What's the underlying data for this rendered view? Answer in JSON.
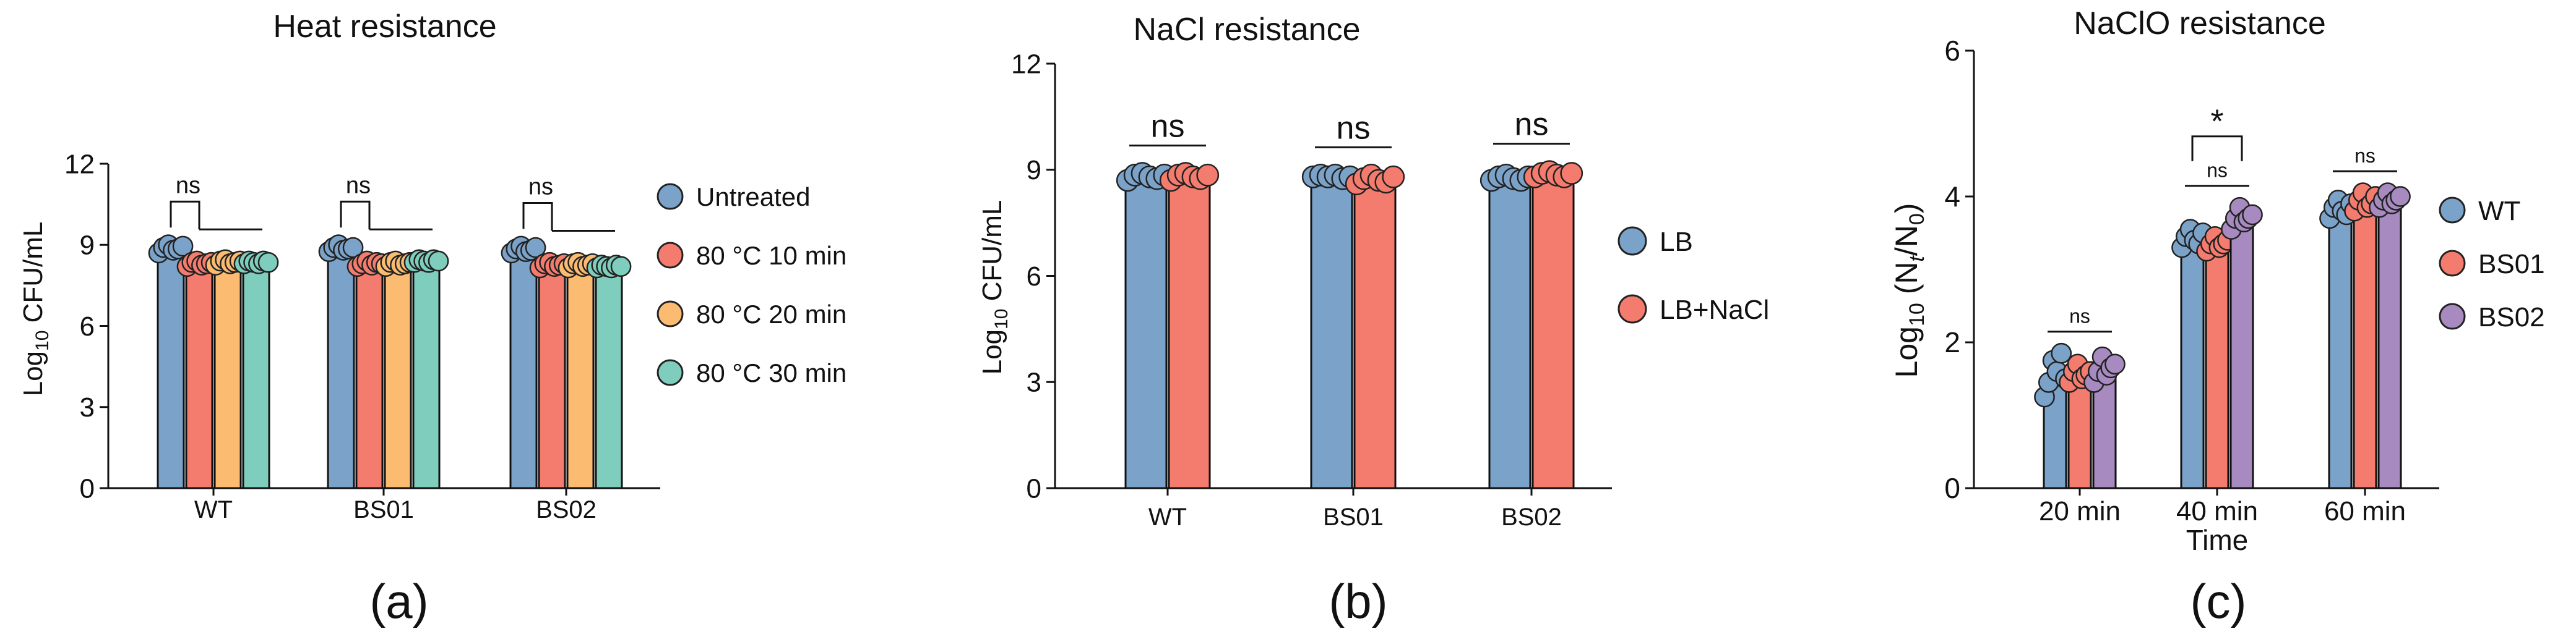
{
  "chart_data": [
    {
      "type": "bar",
      "title": "Heat resistance",
      "panel_label": "(a)",
      "ylabel": {
        "pre": "Log",
        "sub": "10",
        "post": " CFU/mL"
      },
      "xlabel": "",
      "ylim": [
        0,
        12
      ],
      "yticks": [
        "0",
        "3",
        "6",
        "9",
        "12"
      ],
      "categories": [
        "WT",
        "BS01",
        "BS02"
      ],
      "series": [
        {
          "name": "Untreated",
          "color": "#7BA3C9",
          "values": [
            8.85,
            8.85,
            8.8
          ],
          "points": [
            [
              8.7,
              8.9,
              9.0,
              8.8,
              8.85,
              8.95
            ],
            [
              8.75,
              8.9,
              9.0,
              8.8,
              8.85,
              8.9
            ],
            [
              8.7,
              8.85,
              8.95,
              8.75,
              8.8,
              8.9
            ]
          ]
        },
        {
          "name": "80 °C 10 min",
          "color": "#F47C6E",
          "values": [
            8.3,
            8.3,
            8.25
          ],
          "points": [
            [
              8.2,
              8.35,
              8.4,
              8.25,
              8.3,
              8.35
            ],
            [
              8.2,
              8.3,
              8.4,
              8.25,
              8.35,
              8.3
            ],
            [
              8.15,
              8.3,
              8.35,
              8.2,
              8.25,
              8.3
            ]
          ]
        },
        {
          "name": "80 °C 20 min",
          "color": "#FBBC72",
          "values": [
            8.35,
            8.3,
            8.25
          ],
          "points": [
            [
              8.25,
              8.4,
              8.45,
              8.3,
              8.35,
              8.4
            ],
            [
              8.2,
              8.35,
              8.4,
              8.25,
              8.3,
              8.35
            ],
            [
              8.15,
              8.3,
              8.35,
              8.2,
              8.25,
              8.3
            ]
          ]
        },
        {
          "name": "80 °C 30 min",
          "color": "#7FCDBD",
          "values": [
            8.35,
            8.4,
            8.2
          ],
          "points": [
            [
              8.3,
              8.4,
              8.35,
              8.3,
              8.4,
              8.35
            ],
            [
              8.35,
              8.45,
              8.4,
              8.35,
              8.45,
              8.4
            ],
            [
              8.15,
              8.25,
              8.2,
              8.15,
              8.25,
              8.2
            ]
          ]
        }
      ],
      "significance": [
        "ns",
        "ns",
        "ns"
      ],
      "legend": "right"
    },
    {
      "type": "bar",
      "title": "NaCl resistance",
      "panel_label": "(b)",
      "ylabel": {
        "pre": "Log",
        "sub": "10",
        "post": " CFU/mL"
      },
      "xlabel": "",
      "ylim": [
        0,
        12
      ],
      "yticks": [
        "0",
        "3",
        "6",
        "9",
        "12"
      ],
      "categories": [
        "WT",
        "BS01",
        "BS02"
      ],
      "series": [
        {
          "name": "LB",
          "color": "#7BA3C9",
          "values": [
            8.8,
            8.8,
            8.75
          ],
          "points": [
            [
              8.7,
              8.85,
              8.9,
              8.8,
              8.75,
              8.85
            ],
            [
              8.8,
              8.85,
              8.8,
              8.85,
              8.75,
              8.8
            ],
            [
              8.7,
              8.8,
              8.85,
              8.75,
              8.7,
              8.8
            ]
          ]
        },
        {
          "name": "LB+NaCl",
          "color": "#F47C6E",
          "values": [
            8.8,
            8.7,
            8.85
          ],
          "points": [
            [
              8.7,
              8.85,
              8.9,
              8.8,
              8.75,
              8.85
            ],
            [
              8.6,
              8.75,
              8.85,
              8.7,
              8.65,
              8.8
            ],
            [
              8.8,
              8.9,
              8.95,
              8.85,
              8.8,
              8.9
            ]
          ]
        }
      ],
      "significance": [
        "ns",
        "ns",
        "ns"
      ],
      "legend": "right"
    },
    {
      "type": "bar",
      "title": "NaClO resistance",
      "panel_label": "(c)",
      "ylabel": {
        "pre": "Log",
        "sub": "10",
        "post": " (N",
        "sub2": "t",
        "mid": "/N",
        "sub3": "0",
        "end": ")"
      },
      "xlabel": "Time",
      "ylim": [
        0,
        6
      ],
      "yticks": [
        "0",
        "2",
        "4",
        "6"
      ],
      "categories": [
        "20 min",
        "40 min",
        "60 min"
      ],
      "series": [
        {
          "name": "WT",
          "color": "#7BA3C9",
          "values": [
            1.55,
            3.4,
            3.85
          ],
          "points": [
            [
              1.25,
              1.45,
              1.75,
              1.6,
              1.85,
              1.5
            ],
            [
              3.3,
              3.45,
              3.55,
              3.4,
              3.35,
              3.5
            ],
            [
              3.7,
              3.85,
              3.95,
              3.8,
              3.75,
              3.9
            ]
          ]
        },
        {
          "name": "BS01",
          "color": "#F47C6E",
          "values": [
            1.55,
            3.35,
            3.9
          ],
          "points": [
            [
              1.45,
              1.6,
              1.7,
              1.5,
              1.55,
              1.6
            ],
            [
              3.25,
              3.35,
              3.45,
              3.3,
              3.35,
              3.4
            ],
            [
              3.8,
              3.95,
              4.05,
              3.85,
              3.9,
              4.0
            ]
          ]
        },
        {
          "name": "BS02",
          "color": "#A78BC0",
          "values": [
            1.6,
            3.7,
            3.95
          ],
          "points": [
            [
              1.45,
              1.6,
              1.8,
              1.55,
              1.65,
              1.7
            ],
            [
              3.55,
              3.7,
              3.85,
              3.65,
              3.7,
              3.75
            ],
            [
              3.85,
              3.95,
              4.05,
              3.9,
              3.95,
              4.0
            ]
          ]
        }
      ],
      "significance": [
        "ns",
        "ns",
        "ns"
      ],
      "extra_significance": {
        "label": "*",
        "category": "40 min"
      },
      "legend": "right"
    }
  ]
}
